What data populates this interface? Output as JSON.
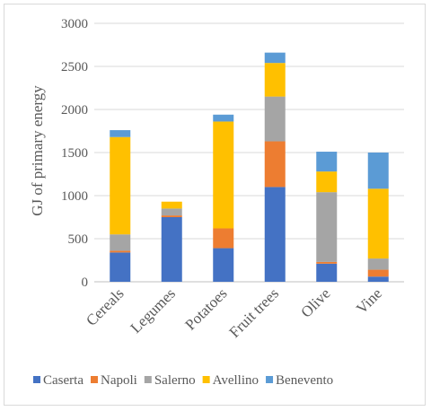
{
  "chart_data": {
    "type": "bar",
    "stacked": true,
    "title": "",
    "xlabel": "",
    "ylabel": "GJ of primary energy",
    "ylim": [
      0,
      3000
    ],
    "yticks": [
      0,
      500,
      1000,
      1500,
      2000,
      2500,
      3000
    ],
    "grid": "horizontal",
    "legend_position": "bottom",
    "categories": [
      "Cereals",
      "Legumes",
      "Potatoes",
      "Fruit trees",
      "Olive",
      "Vine"
    ],
    "series": [
      {
        "name": "Caserta",
        "color": "#4472c4",
        "values": [
          340,
          750,
          390,
          1100,
          210,
          60
        ]
      },
      {
        "name": "Napoli",
        "color": "#ed7d31",
        "values": [
          20,
          20,
          230,
          530,
          20,
          80
        ]
      },
      {
        "name": "Salerno",
        "color": "#a5a5a5",
        "values": [
          190,
          80,
          0,
          520,
          810,
          130
        ]
      },
      {
        "name": "Avellino",
        "color": "#ffc000",
        "values": [
          1130,
          80,
          1240,
          390,
          240,
          810
        ]
      },
      {
        "name": "Benevento",
        "color": "#5b9bd5",
        "values": [
          80,
          0,
          80,
          120,
          230,
          420
        ]
      }
    ]
  }
}
